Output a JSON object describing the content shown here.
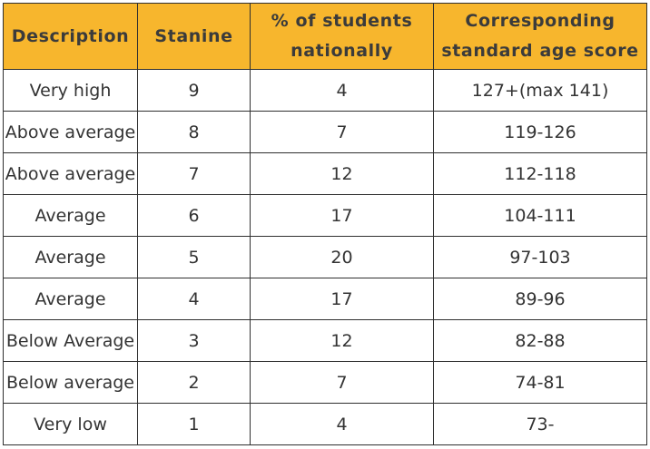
{
  "table": {
    "headers": [
      "Description",
      "Stanine",
      "% of students nationally",
      "Corresponding standard age score"
    ],
    "rows": [
      {
        "description": "Very high",
        "stanine": "9",
        "percent": "4",
        "score": "127+(max 141)"
      },
      {
        "description": "Above average",
        "stanine": "8",
        "percent": "7",
        "score": "119-126"
      },
      {
        "description": "Above average",
        "stanine": "7",
        "percent": "12",
        "score": "112-118"
      },
      {
        "description": "Average",
        "stanine": "6",
        "percent": "17",
        "score": "104-111"
      },
      {
        "description": "Average",
        "stanine": "5",
        "percent": "20",
        "score": "97-103"
      },
      {
        "description": "Average",
        "stanine": "4",
        "percent": "17",
        "score": "89-96"
      },
      {
        "description": "Below Average",
        "stanine": "3",
        "percent": "12",
        "score": "82-88"
      },
      {
        "description": "Below average",
        "stanine": "2",
        "percent": "7",
        "score": "74-81"
      },
      {
        "description": "Very low",
        "stanine": "1",
        "percent": "4",
        "score": "73-"
      }
    ]
  },
  "colors": {
    "header_background": "#f7b62d",
    "header_text": "#3b3b3b",
    "body_text": "#333333",
    "border": "#2f2f2f"
  }
}
